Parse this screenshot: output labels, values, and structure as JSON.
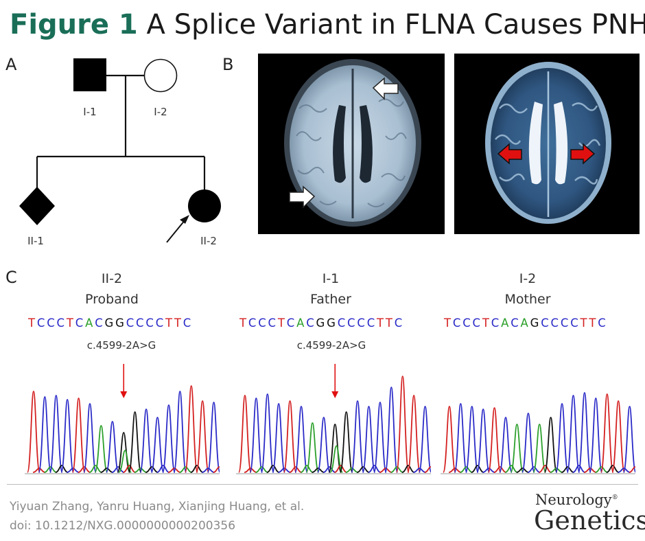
{
  "title": {
    "figure_label": "Figure 1",
    "text": "A Splice Variant in FLNA Causes PNH"
  },
  "panels": {
    "a": "A",
    "b": "B",
    "c": "C"
  },
  "pedigree": {
    "labels": [
      "I-1",
      "I-2",
      "II-1",
      "II-2"
    ],
    "members": [
      {
        "id": "I-1",
        "sex": "male",
        "affected": true
      },
      {
        "id": "I-2",
        "sex": "female",
        "affected": false
      },
      {
        "id": "II-1",
        "sex": "unknown",
        "affected": true
      },
      {
        "id": "II-2",
        "sex": "female",
        "affected": true,
        "proband": true
      }
    ]
  },
  "chromatograms": [
    {
      "id": "II-2",
      "role": "Proband",
      "sequence": "TCCCTCACGGCCCCTTC",
      "variant": "c.4599-2A>G"
    },
    {
      "id": "I-1",
      "role": "Father",
      "sequence": "TCCCTCACGGCCCCTTC",
      "variant": "c.4599-2A>G"
    },
    {
      "id": "I-2",
      "role": "Mother",
      "sequence": "TCCCTCACAGCCCCTTC",
      "variant": ""
    }
  ],
  "footer": {
    "authors": "Yiyuan Zhang, Yanru Huang, Xianjing Huang, et al.",
    "doi": "doi: 10.1212/NXG.0000000000200356"
  },
  "logo": {
    "line1": "Neurology",
    "reg": "®",
    "line2": "Genetics"
  },
  "colors": {
    "title_accent": "#1a6e58",
    "A": "#2ba02b",
    "C": "#2a2ac8",
    "G": "#111111",
    "T": "#d42020",
    "arrow_red": "#e01010"
  }
}
